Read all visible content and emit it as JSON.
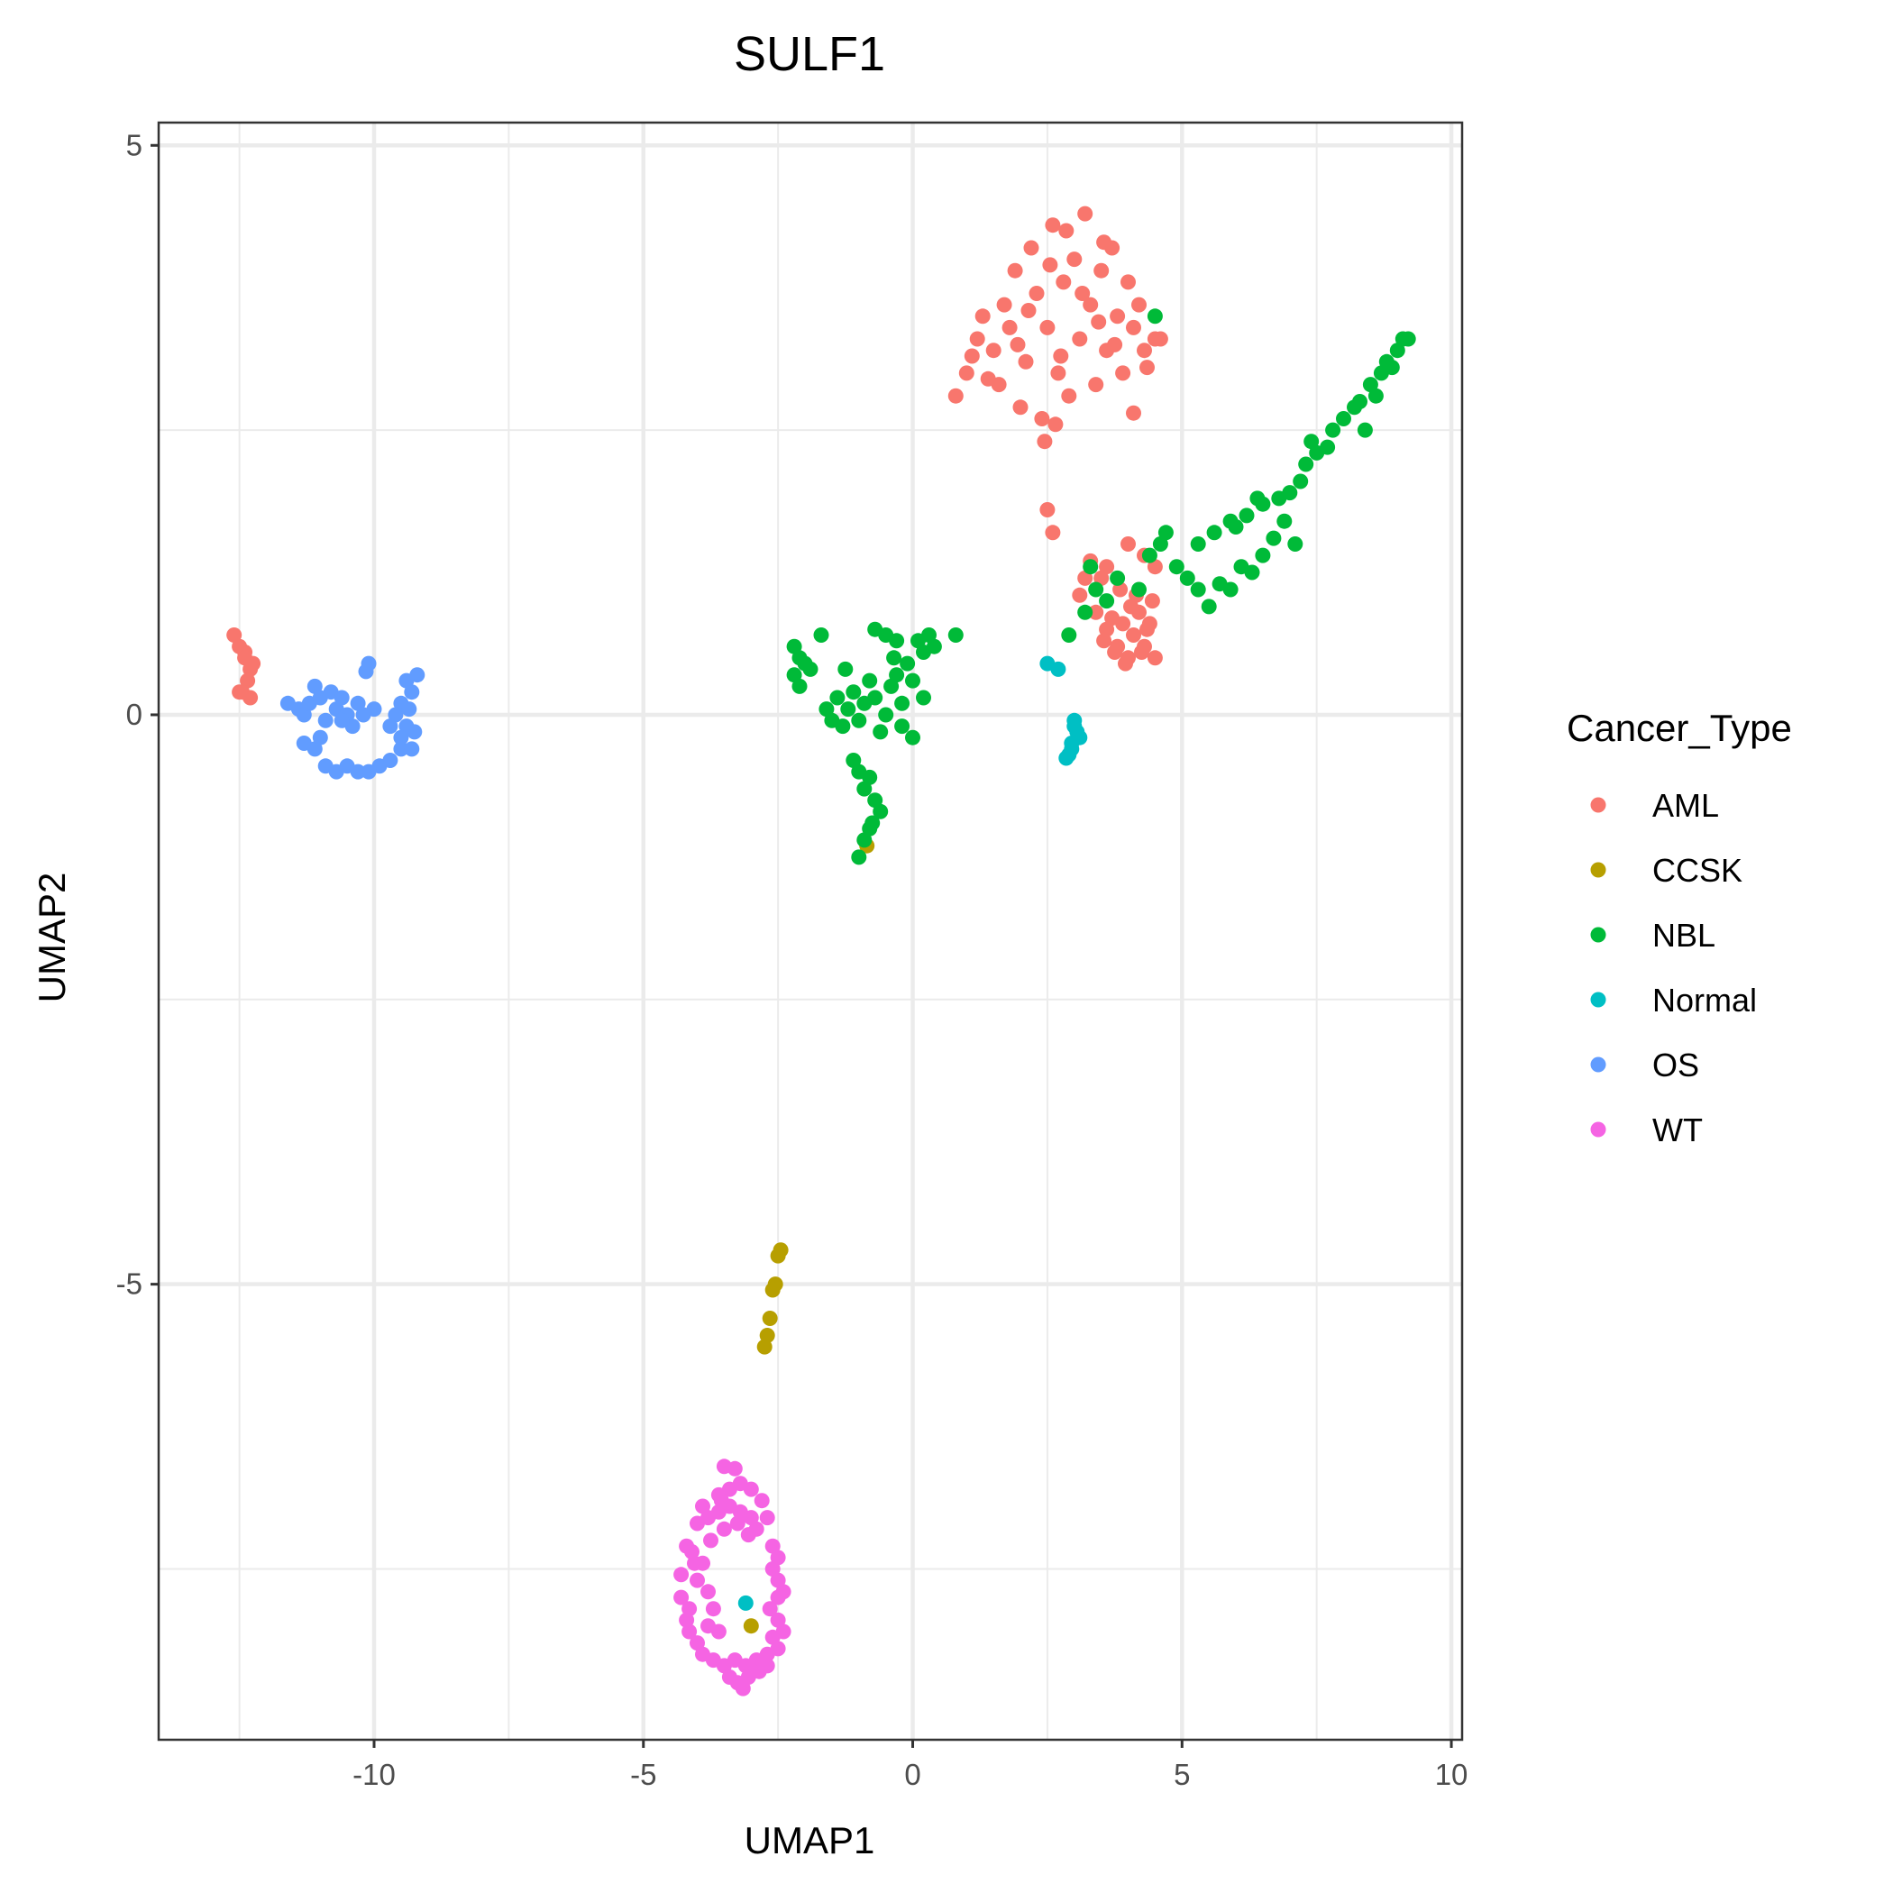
{
  "chart_data": {
    "type": "scatter",
    "title": "SULF1",
    "xlabel": "UMAP1",
    "ylabel": "UMAP2",
    "xlim": [
      -14,
      10.2
    ],
    "ylim": [
      -9,
      5.2
    ],
    "xticks": [
      -10,
      -5,
      0,
      5,
      10
    ],
    "xtick_labels": [
      "-10",
      "-5",
      "0",
      "5",
      "10"
    ],
    "yticks": [
      5,
      0,
      -5
    ],
    "ytick_labels": [
      "5",
      "0",
      "-5"
    ],
    "grid": true,
    "legend": {
      "title": "Cancer_Type",
      "position": "right",
      "entries": [
        "AML",
        "CCSK",
        "NBL",
        "Normal",
        "OS",
        "WT"
      ]
    },
    "series": [
      {
        "name": "AML",
        "color": "#F8766D",
        "points": [
          [
            -12.6,
            0.7
          ],
          [
            -12.5,
            0.6
          ],
          [
            -12.4,
            0.55
          ],
          [
            -12.3,
            0.4
          ],
          [
            -12.35,
            0.3
          ],
          [
            -12.4,
            0.5
          ],
          [
            -12.3,
            0.15
          ],
          [
            -12.25,
            0.45
          ],
          [
            -12.45,
            0.2
          ],
          [
            -12.5,
            0.2
          ],
          [
            0.8,
            2.8
          ],
          [
            1.0,
            3.0
          ],
          [
            1.2,
            3.3
          ],
          [
            1.3,
            3.5
          ],
          [
            1.5,
            3.2
          ],
          [
            1.6,
            2.9
          ],
          [
            1.7,
            3.6
          ],
          [
            1.8,
            3.4
          ],
          [
            1.9,
            3.9
          ],
          [
            2.0,
            2.7
          ],
          [
            2.1,
            3.1
          ],
          [
            2.2,
            4.1
          ],
          [
            2.3,
            3.7
          ],
          [
            2.4,
            2.6
          ],
          [
            2.5,
            3.4
          ],
          [
            2.6,
            4.3
          ],
          [
            2.7,
            3.0
          ],
          [
            2.8,
            3.8
          ],
          [
            2.9,
            2.8
          ],
          [
            3.0,
            4.0
          ],
          [
            3.1,
            3.3
          ],
          [
            3.2,
            4.4
          ],
          [
            3.3,
            3.6
          ],
          [
            3.4,
            2.9
          ],
          [
            3.5,
            3.9
          ],
          [
            3.6,
            3.2
          ],
          [
            3.7,
            4.1
          ],
          [
            3.8,
            3.5
          ],
          [
            3.9,
            3.0
          ],
          [
            4.0,
            3.8
          ],
          [
            4.1,
            3.4
          ],
          [
            4.2,
            3.6
          ],
          [
            4.3,
            3.2
          ],
          [
            4.5,
            3.3
          ],
          [
            4.6,
            3.3
          ],
          [
            4.1,
            2.65
          ],
          [
            1.4,
            2.95
          ],
          [
            1.1,
            3.15
          ],
          [
            2.45,
            2.4
          ],
          [
            2.65,
            2.55
          ],
          [
            3.15,
            3.7
          ],
          [
            2.85,
            4.25
          ],
          [
            3.55,
            4.15
          ],
          [
            3.75,
            3.25
          ],
          [
            4.35,
            3.05
          ],
          [
            2.15,
            3.55
          ],
          [
            1.95,
            3.25
          ],
          [
            2.55,
            3.95
          ],
          [
            3.45,
            3.45
          ],
          [
            2.75,
            3.15
          ],
          [
            2.5,
            1.8
          ],
          [
            2.6,
            1.6
          ],
          [
            3.3,
            1.35
          ],
          [
            4.0,
            1.5
          ],
          [
            4.3,
            1.4
          ],
          [
            3.6,
            1.3
          ],
          [
            3.2,
            1.2
          ],
          [
            4.5,
            1.3
          ],
          [
            3.1,
            1.05
          ],
          [
            3.5,
            1.2
          ],
          [
            3.4,
            0.9
          ],
          [
            3.6,
            0.75
          ],
          [
            3.8,
            0.6
          ],
          [
            3.9,
            0.8
          ],
          [
            4.0,
            0.5
          ],
          [
            4.1,
            0.7
          ],
          [
            4.2,
            0.9
          ],
          [
            4.3,
            0.6
          ],
          [
            4.4,
            0.8
          ],
          [
            4.5,
            0.5
          ],
          [
            3.7,
            0.85
          ],
          [
            3.95,
            0.45
          ],
          [
            4.25,
            0.55
          ],
          [
            4.45,
            1.0
          ],
          [
            3.55,
            0.65
          ],
          [
            4.15,
            1.05
          ],
          [
            3.85,
            1.1
          ],
          [
            4.35,
            0.75
          ],
          [
            4.05,
            0.95
          ],
          [
            3.75,
            0.55
          ]
        ]
      },
      {
        "name": "CCSK",
        "color": "#B79F00",
        "points": [
          [
            -2.45,
            -4.7
          ],
          [
            -2.5,
            -4.75
          ],
          [
            -2.55,
            -5.0
          ],
          [
            -2.6,
            -5.05
          ],
          [
            -2.65,
            -5.3
          ],
          [
            -2.7,
            -5.45
          ],
          [
            -2.75,
            -5.55
          ],
          [
            -0.85,
            -1.15
          ],
          [
            -3.0,
            -8.0
          ]
        ]
      },
      {
        "name": "NBL",
        "color": "#00BA38",
        "points": [
          [
            -2.2,
            0.6
          ],
          [
            -2.1,
            0.5
          ],
          [
            -2.0,
            0.45
          ],
          [
            -2.2,
            0.35
          ],
          [
            -2.1,
            0.25
          ],
          [
            -1.9,
            0.4
          ],
          [
            -1.7,
            0.7
          ],
          [
            -1.6,
            0.05
          ],
          [
            -1.4,
            0.15
          ],
          [
            -1.3,
            -0.1
          ],
          [
            -1.2,
            0.05
          ],
          [
            -1.1,
            0.2
          ],
          [
            -1.0,
            -0.05
          ],
          [
            -0.9,
            0.1
          ],
          [
            -0.8,
            0.3
          ],
          [
            -0.7,
            0.15
          ],
          [
            -0.6,
            -0.15
          ],
          [
            -0.5,
            0.0
          ],
          [
            -0.4,
            0.25
          ],
          [
            -0.3,
            0.35
          ],
          [
            -0.2,
            0.1
          ],
          [
            -0.1,
            0.45
          ],
          [
            0.0,
            0.3
          ],
          [
            0.1,
            0.65
          ],
          [
            0.2,
            0.55
          ],
          [
            0.3,
            0.7
          ],
          [
            0.4,
            0.6
          ],
          [
            0.8,
            0.7
          ],
          [
            -0.7,
            0.75
          ],
          [
            -0.5,
            0.7
          ],
          [
            -0.3,
            0.65
          ],
          [
            0.0,
            -0.2
          ],
          [
            -1.1,
            -0.4
          ],
          [
            -1.0,
            -0.5
          ],
          [
            -0.9,
            -0.65
          ],
          [
            -0.8,
            -0.55
          ],
          [
            -0.7,
            -0.75
          ],
          [
            -0.6,
            -0.85
          ],
          [
            -0.75,
            -0.95
          ],
          [
            -0.9,
            -1.1
          ],
          [
            -1.0,
            -1.25
          ],
          [
            -0.8,
            -1.0
          ],
          [
            -1.25,
            0.4
          ],
          [
            -1.5,
            -0.05
          ],
          [
            -0.2,
            -0.1
          ],
          [
            0.2,
            0.15
          ],
          [
            -0.35,
            0.5
          ],
          [
            2.9,
            0.7
          ],
          [
            3.2,
            0.9
          ],
          [
            3.4,
            1.1
          ],
          [
            3.6,
            1.0
          ],
          [
            3.8,
            1.2
          ],
          [
            3.3,
            1.3
          ],
          [
            4.2,
            1.1
          ],
          [
            4.4,
            1.4
          ],
          [
            4.6,
            1.5
          ],
          [
            4.9,
            1.3
          ],
          [
            5.1,
            1.2
          ],
          [
            5.3,
            1.1
          ],
          [
            5.5,
            0.95
          ],
          [
            5.7,
            1.15
          ],
          [
            5.9,
            1.1
          ],
          [
            6.1,
            1.3
          ],
          [
            6.3,
            1.25
          ],
          [
            6.5,
            1.4
          ],
          [
            6.7,
            1.55
          ],
          [
            5.6,
            1.6
          ],
          [
            5.9,
            1.7
          ],
          [
            6.2,
            1.75
          ],
          [
            6.5,
            1.85
          ],
          [
            6.8,
            1.9
          ],
          [
            6.9,
            1.7
          ],
          [
            7.0,
            1.95
          ],
          [
            7.2,
            2.05
          ],
          [
            7.3,
            2.2
          ],
          [
            7.5,
            2.3
          ],
          [
            7.4,
            2.4
          ],
          [
            7.7,
            2.35
          ],
          [
            7.8,
            2.5
          ],
          [
            8.0,
            2.6
          ],
          [
            8.2,
            2.7
          ],
          [
            8.3,
            2.75
          ],
          [
            8.5,
            2.9
          ],
          [
            8.6,
            2.8
          ],
          [
            8.7,
            3.0
          ],
          [
            8.9,
            3.05
          ],
          [
            9.0,
            3.2
          ],
          [
            9.1,
            3.3
          ],
          [
            9.2,
            3.3
          ],
          [
            8.8,
            3.1
          ],
          [
            8.4,
            2.5
          ],
          [
            7.1,
            1.5
          ],
          [
            6.4,
            1.9
          ],
          [
            6.0,
            1.65
          ],
          [
            4.7,
            1.6
          ],
          [
            4.5,
            3.5
          ],
          [
            5.3,
            1.5
          ]
        ]
      },
      {
        "name": "Normal",
        "color": "#00BFC4",
        "points": [
          [
            2.5,
            0.45
          ],
          [
            2.7,
            0.4
          ],
          [
            3.0,
            -0.1
          ],
          [
            3.05,
            -0.15
          ],
          [
            3.1,
            -0.2
          ],
          [
            2.95,
            -0.25
          ],
          [
            2.9,
            -0.35
          ],
          [
            2.95,
            -0.3
          ],
          [
            2.85,
            -0.38
          ],
          [
            3.0,
            -0.05
          ],
          [
            -3.1,
            -7.8
          ]
        ]
      },
      {
        "name": "OS",
        "color": "#619CFF",
        "points": [
          [
            -11.6,
            0.1
          ],
          [
            -11.4,
            0.05
          ],
          [
            -11.3,
            0.0
          ],
          [
            -11.2,
            0.1
          ],
          [
            -11.1,
            0.25
          ],
          [
            -11.0,
            0.15
          ],
          [
            -10.9,
            -0.05
          ],
          [
            -10.8,
            0.2
          ],
          [
            -10.7,
            0.05
          ],
          [
            -10.6,
            0.15
          ],
          [
            -10.5,
            0.0
          ],
          [
            -10.4,
            -0.1
          ],
          [
            -10.3,
            0.1
          ],
          [
            -10.2,
            0.0
          ],
          [
            -10.1,
            0.45
          ],
          [
            -10.15,
            0.38
          ],
          [
            -10.0,
            0.05
          ],
          [
            -11.3,
            -0.25
          ],
          [
            -11.1,
            -0.3
          ],
          [
            -10.9,
            -0.45
          ],
          [
            -10.7,
            -0.5
          ],
          [
            -10.5,
            -0.45
          ],
          [
            -10.3,
            -0.5
          ],
          [
            -10.1,
            -0.5
          ],
          [
            -9.9,
            -0.45
          ],
          [
            -9.7,
            -0.4
          ],
          [
            -9.5,
            -0.3
          ],
          [
            -9.3,
            -0.3
          ],
          [
            -9.4,
            -0.1
          ],
          [
            -9.3,
            0.2
          ],
          [
            -9.2,
            0.35
          ],
          [
            -9.4,
            0.3
          ],
          [
            -9.5,
            0.1
          ],
          [
            -9.6,
            0.0
          ],
          [
            -9.7,
            -0.1
          ],
          [
            -9.25,
            -0.15
          ],
          [
            -9.35,
            0.05
          ],
          [
            -9.5,
            -0.2
          ],
          [
            -11.0,
            -0.2
          ],
          [
            -10.6,
            -0.05
          ]
        ]
      },
      {
        "name": "WT",
        "color": "#F564E3",
        "points": [
          [
            -3.5,
            -6.6
          ],
          [
            -3.3,
            -6.62
          ],
          [
            -3.6,
            -6.85
          ],
          [
            -3.4,
            -6.8
          ],
          [
            -3.2,
            -6.75
          ],
          [
            -3.0,
            -6.8
          ],
          [
            -2.8,
            -6.9
          ],
          [
            -3.9,
            -6.95
          ],
          [
            -3.8,
            -7.05
          ],
          [
            -3.6,
            -7.0
          ],
          [
            -3.4,
            -6.95
          ],
          [
            -3.2,
            -7.0
          ],
          [
            -3.0,
            -7.05
          ],
          [
            -2.7,
            -7.05
          ],
          [
            -4.0,
            -7.1
          ],
          [
            -3.5,
            -7.15
          ],
          [
            -4.2,
            -7.3
          ],
          [
            -4.1,
            -7.35
          ],
          [
            -3.9,
            -7.45
          ],
          [
            -2.6,
            -7.3
          ],
          [
            -2.5,
            -7.4
          ],
          [
            -2.6,
            -7.5
          ],
          [
            -4.3,
            -7.55
          ],
          [
            -4.0,
            -7.6
          ],
          [
            -3.8,
            -7.7
          ],
          [
            -2.5,
            -7.6
          ],
          [
            -2.4,
            -7.7
          ],
          [
            -2.5,
            -7.75
          ],
          [
            -4.3,
            -7.75
          ],
          [
            -4.15,
            -7.85
          ],
          [
            -3.7,
            -7.85
          ],
          [
            -4.2,
            -7.95
          ],
          [
            -4.15,
            -8.05
          ],
          [
            -3.8,
            -8.0
          ],
          [
            -3.6,
            -8.05
          ],
          [
            -2.5,
            -7.95
          ],
          [
            -2.4,
            -8.05
          ],
          [
            -2.6,
            -8.1
          ],
          [
            -4.0,
            -8.15
          ],
          [
            -3.9,
            -8.25
          ],
          [
            -3.7,
            -8.3
          ],
          [
            -3.5,
            -8.35
          ],
          [
            -3.3,
            -8.3
          ],
          [
            -3.1,
            -8.35
          ],
          [
            -2.9,
            -8.3
          ],
          [
            -2.7,
            -8.25
          ],
          [
            -2.5,
            -8.2
          ],
          [
            -3.4,
            -8.45
          ],
          [
            -3.25,
            -8.5
          ],
          [
            -3.05,
            -8.45
          ],
          [
            -2.85,
            -8.4
          ],
          [
            -3.15,
            -8.55
          ],
          [
            -2.7,
            -8.35
          ],
          [
            -3.55,
            -6.9
          ],
          [
            -3.75,
            -7.25
          ],
          [
            -3.25,
            -7.1
          ],
          [
            -3.05,
            -7.2
          ],
          [
            -2.9,
            -7.15
          ],
          [
            -4.05,
            -7.45
          ],
          [
            -2.65,
            -7.85
          ]
        ]
      }
    ]
  }
}
